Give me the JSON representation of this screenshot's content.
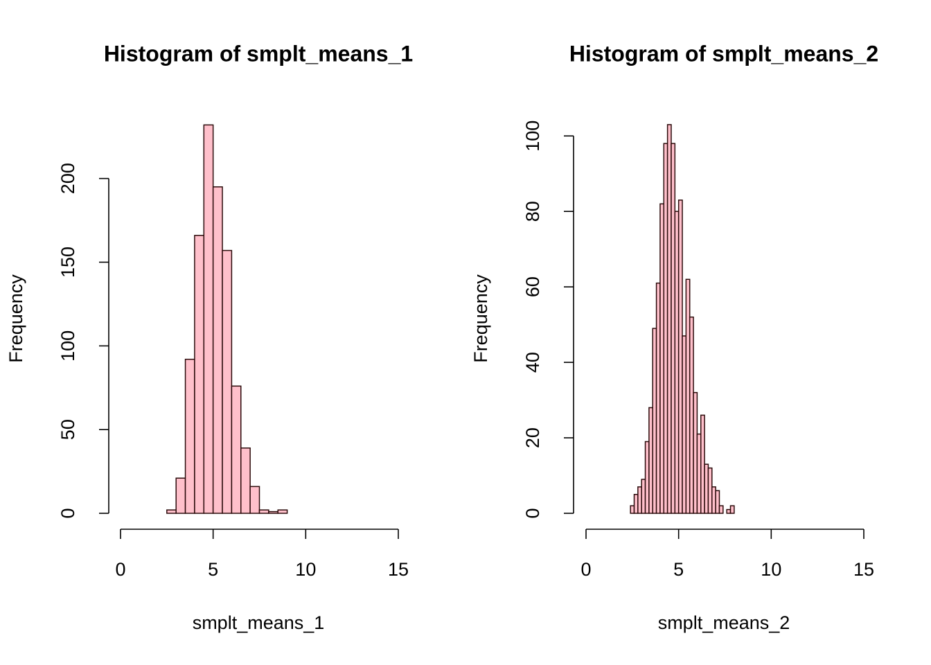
{
  "chart_data": [
    {
      "type": "histogram",
      "title": "Histogram of smplt_means_1",
      "x_label": "smplt_means_1",
      "y_label": "Frequency",
      "bins": [
        2.5,
        3,
        3.5,
        4,
        4.5,
        5,
        5.5,
        6,
        6.5,
        7,
        7.5,
        8,
        8.5,
        9
      ],
      "values": [
        2,
        21,
        92,
        166,
        232,
        195,
        157,
        76,
        39,
        16,
        2,
        1,
        2
      ],
      "color": "pink",
      "edge_color": "#2a0a0a",
      "xlim": [
        0,
        15
      ],
      "xticks": [
        0,
        5,
        10,
        15
      ],
      "ylim": [
        0,
        240
      ],
      "yticks": [
        0,
        50,
        100,
        150,
        200
      ]
    },
    {
      "type": "histogram",
      "title": "Histogram of smplt_means_2",
      "x_label": "smplt_means_2",
      "y_label": "Frequency",
      "bins": [
        2.4,
        2.6,
        2.8,
        3.0,
        3.2,
        3.4,
        3.6,
        3.8,
        4.0,
        4.2,
        4.4,
        4.6,
        4.8,
        5.0,
        5.2,
        5.4,
        5.6,
        5.8,
        6.0,
        6.2,
        6.4,
        6.6,
        6.8,
        7.0,
        7.2,
        7.4,
        7.6,
        7.8,
        8.0
      ],
      "values": [
        2,
        5,
        7,
        9,
        19,
        28,
        49,
        61,
        82,
        98,
        103,
        98,
        80,
        83,
        47,
        62,
        52,
        32,
        21,
        26,
        13,
        12,
        7,
        6,
        2,
        0,
        1,
        2
      ],
      "color": "pink",
      "edge_color": "#2a0a0a",
      "xlim": [
        0,
        15
      ],
      "xticks": [
        0,
        5,
        10,
        15
      ],
      "ylim": [
        0,
        105
      ],
      "yticks": [
        0,
        20,
        40,
        60,
        80,
        100
      ]
    }
  ]
}
